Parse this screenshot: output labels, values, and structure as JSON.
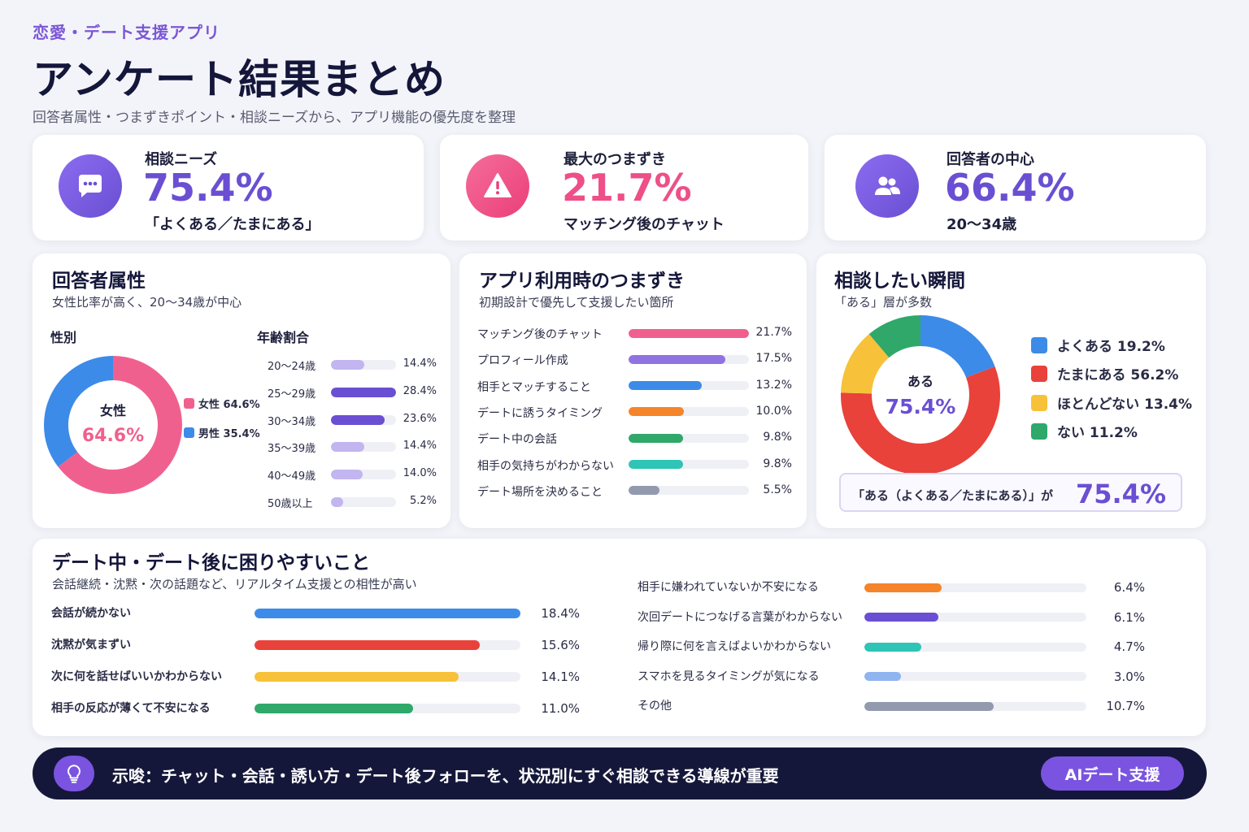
{
  "header": {
    "eyebrow": "恋愛・デート支援アプリ",
    "title": "アンケート結果まとめ",
    "subtitle": "回答者属性・つまずきポイント・相談ニーズから、アプリ機能の優先度を整理"
  },
  "kpis": [
    {
      "label": "相談ニーズ",
      "value": "75.4%",
      "note": "「よくある／たまにある」",
      "icon": "chat-bubble-icon",
      "color": "#6a4fd3"
    },
    {
      "label": "最大のつまずき",
      "value": "21.7%",
      "note": "マッチング後のチャット",
      "icon": "warning-icon",
      "color": "#ee4f88"
    },
    {
      "label": "回答者の中心",
      "value": "66.4%",
      "note": "20〜34歳",
      "icon": "users-icon",
      "color": "#6a4fd3"
    }
  ],
  "attributes": {
    "title": "回答者属性",
    "subtitle": "女性比率が高く、20〜34歳が中心",
    "gender_heading": "性別",
    "age_heading": "年齢割合",
    "donut_label": "女性",
    "donut_value": "64.6%",
    "legend": [
      {
        "label": "女性 64.6%",
        "color": "#f0608e"
      },
      {
        "label": "男性 35.4%",
        "color": "#3d8be8"
      }
    ]
  },
  "struggles": {
    "title": "アプリ利用時のつまずき",
    "subtitle": "初期設計で優先して支援したい箇所"
  },
  "consult": {
    "title": "相談したい瞬間",
    "subtitle": "「ある」層が多数",
    "donut_label": "ある",
    "donut_value": "75.4%",
    "legend": [
      {
        "label": "よくある 19.2%",
        "color": "#3d8be8"
      },
      {
        "label": "たまにある 56.2%",
        "color": "#e8423a"
      },
      {
        "label": "ほとんどない 13.4%",
        "color": "#f7c13a"
      },
      {
        "label": "ない 11.2%",
        "color": "#2fa86a"
      }
    ],
    "callout_text": "「ある（よくある／たまにある）」が",
    "callout_value": "75.4%"
  },
  "date_trouble": {
    "title": "デート中・デート後に困りやすいこと",
    "subtitle": "会話継続・沈黙・次の話題など、リアルタイム支援との相性が高い"
  },
  "footer": {
    "icon": "lightbulb-icon",
    "text": "示唆：チャット・会話・誘い方・デート後フォローを、状況別にすぐ相談できる導線が重要",
    "button": "AIデート支援"
  },
  "chart_data": [
    {
      "type": "pie",
      "name": "gender",
      "categories": [
        "女性",
        "男性"
      ],
      "values": [
        64.6,
        35.4
      ],
      "colors": [
        "#f0608e",
        "#3d8be8"
      ]
    },
    {
      "type": "bar",
      "name": "age",
      "categories": [
        "20〜24歳",
        "25〜29歳",
        "30〜34歳",
        "35〜39歳",
        "40〜49歳",
        "50歳以上"
      ],
      "values": [
        14.4,
        28.4,
        23.6,
        14.4,
        14.0,
        5.2
      ],
      "colors": [
        "#c2b5f0",
        "#6a4fd3",
        "#6a4fd3",
        "#c2b5f0",
        "#c2b5f0",
        "#c2b5f0"
      ],
      "max": 28.4
    },
    {
      "type": "bar",
      "name": "struggles",
      "categories": [
        "マッチング後のチャット",
        "プロフィール作成",
        "相手とマッチすること",
        "デートに誘うタイミング",
        "デート中の会話",
        "相手の気持ちがわからない",
        "デート場所を決めること"
      ],
      "values": [
        21.7,
        17.5,
        13.2,
        10.0,
        9.8,
        9.8,
        5.5
      ],
      "colors": [
        "#f0608e",
        "#8f73e0",
        "#3d8be8",
        "#f5842a",
        "#2fa86a",
        "#2ec4b6",
        "#939aae"
      ],
      "max": 21.7
    },
    {
      "type": "pie",
      "name": "consult",
      "categories": [
        "よくある",
        "たまにある",
        "ほとんどない",
        "ない"
      ],
      "values": [
        19.2,
        56.2,
        13.4,
        11.2
      ],
      "colors": [
        "#3d8be8",
        "#e8423a",
        "#f7c13a",
        "#2fa86a"
      ]
    },
    {
      "type": "bar",
      "name": "date_trouble_left",
      "categories": [
        "会話が続かない",
        "沈黙が気まずい",
        "次に何を話せばいいかわからない",
        "相手の反応が薄くて不安になる"
      ],
      "values": [
        18.4,
        15.6,
        14.1,
        11.0
      ],
      "colors": [
        "#3d8be8",
        "#e8423a",
        "#f7c13a",
        "#2fa86a"
      ],
      "max": 18.4
    },
    {
      "type": "bar",
      "name": "date_trouble_right",
      "categories": [
        "相手に嫌われていないか不安になる",
        "次回デートにつなげる言葉がわからない",
        "帰り際に何を言えばよいかわからない",
        "スマホを見るタイミングが気になる",
        "その他"
      ],
      "values": [
        6.4,
        6.1,
        4.7,
        3.0,
        10.7
      ],
      "colors": [
        "#f5842a",
        "#6a4fd3",
        "#2ec4b6",
        "#8fb4f0",
        "#939aae"
      ],
      "max": 18.4
    }
  ]
}
